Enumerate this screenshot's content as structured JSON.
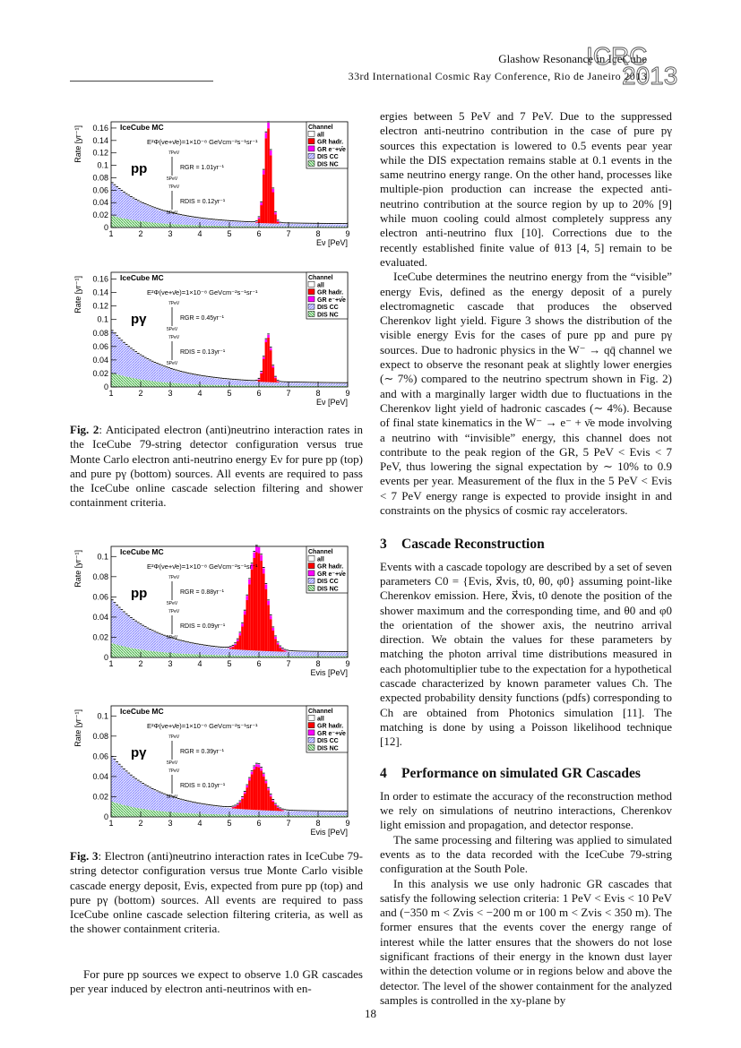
{
  "header": {
    "title": "Glashow Resonance in IceCube",
    "conference": "33rd International Cosmic Ray Conference, Rio de Janeiro 2013",
    "logo_text_1": "ICRC",
    "logo_text_2": "2013"
  },
  "page_number": "18",
  "figure2": {
    "caption_label": "Fig. 2",
    "caption_text": ": Anticipated electron (anti)neutrino interaction rates in the IceCube 79-string detector configuration versus true Monte Carlo electron anti-neutrino energy Eν for pure pp (top) and pure pγ (bottom) sources. All events are required to pass the IceCube online cascade selection filtering and shower containment criteria."
  },
  "figure3": {
    "caption_label": "Fig. 3",
    "caption_text": ": Electron (anti)neutrino interaction rates in IceCube 79-string detector configuration versus true Monte Carlo visible cascade energy deposit, Evis, expected from pure pp (top) and pure pγ (bottom) sources. All events are required to pass IceCube online cascade selection filtering criteria, as well as the shower containment criteria."
  },
  "left_text": {
    "p1": "For pure pp sources we expect to observe 1.0 GR cascades per year induced by electron anti-neutrinos with en-"
  },
  "right_text": {
    "p1": "ergies between 5 PeV and 7 PeV. Due to the suppressed electron anti-neutrino contribution in the case of pure pγ sources this expectation is lowered to 0.5 events pear year while the DIS expectation remains stable at 0.1 events in the same neutrino energy range. On the other hand, processes like multiple-pion production can increase the expected anti-neutrino contribution at the source region by up to 20% [9] while muon cooling could almost completely suppress any electron anti-neutrino flux [10]. Corrections due to the recently established finite value of θ13 [4, 5] remain to be evaluated.",
    "p2": "IceCube determines the neutrino energy from the “visible” energy Evis, defined as the energy deposit of a purely electromagnetic cascade that produces the observed Cherenkov light yield. Figure 3 shows the distribution of the visible energy Evis for the cases of pure pp and pure pγ sources. Due to hadronic physics in the W⁻ → qq̄ channel we expect to observe the resonant peak at slightly lower energies (∼ 7%) compared to the neutrino spectrum shown in Fig. 2) and with a marginally larger width due to fluctuations in the Cherenkov light yield of hadronic cascades (∼ 4%). Because of final state kinematics in the W⁻ → e⁻ + ν̄e mode involving a neutrino with “invisible” energy, this channel does not contribute to the peak region of the GR, 5 PeV < Evis < 7 PeV, thus lowering the signal expectation by ∼ 10% to 0.9 events per year. Measurement of the flux in the 5 PeV < Evis < 7 PeV energy range is expected to provide insight in and constraints on the physics of cosmic ray accelerators.",
    "sec3_num": "3",
    "sec3_title": "Cascade Reconstruction",
    "p3": "Events with a cascade topology are described by a set of seven parameters C0 = {Evis, x⃗vis, t0, θ0, φ0} assuming point-like Cherenkov emission. Here, x⃗vis, t0 denote the position of the shower maximum and the corresponding time, and θ0 and φ0 the orientation of the shower axis, the neutrino arrival direction. We obtain the values for these parameters by matching the photon arrival time distributions measured in each photomultiplier tube to the expectation for a hypothetical cascade characterized by known parameter values Ch. The expected probability density functions (pdfs) corresponding to Ch are obtained from Photonics simulation [11]. The matching is done by using a Poisson likelihood technique [12].",
    "sec4_num": "4",
    "sec4_title": "Performance on simulated GR Cascades",
    "p4": "In order to estimate the accuracy of the reconstruction method we rely on simulations of neutrino interactions, Cherenkov light emission and propagation, and detector response.",
    "p5": "The same processing and filtering was applied to simulated events as to the data recorded with the IceCube 79-string configuration at the South Pole.",
    "p6": "In this analysis we use only hadronic GR cascades that satisfy the following selection criteria: 1 PeV < Evis < 10 PeV and (−350 m < Zvis < −200 m or 100 m < Zvis < 350 m). The former ensures that the events cover the energy range of interest while the latter ensures that the showers do not lose significant fractions of their energy in the known dust layer within the detection volume or in regions below and above the detector. The level of the shower containment for the analyzed samples is controlled in the xy-plane by"
  },
  "colors": {
    "gr_hadr": "#ff0000",
    "gr_e": "#ff00ff",
    "dis_cc": "#7f7fff",
    "dis_nc": "#33aa33",
    "all": "#000000"
  },
  "chart_data": [
    {
      "type": "bar",
      "panel": "Fig. 2 top",
      "title": "IceCube MC",
      "source_label": "pp",
      "flux_label": "E²Φ(νe+ν̄e)=1×10⁻⁸ GeVcm⁻²s⁻¹sr⁻¹",
      "rate_gr_label": "RGR = 1.01yr⁻¹",
      "rate_dis_label": "RDIS = 0.12yr⁻¹",
      "integral_upper": "7PeV",
      "integral_lower": "5PeV",
      "xlabel": "Eν [PeV]",
      "ylabel": "Rate [yr⁻¹]",
      "xlim": [
        1,
        9
      ],
      "ylim": [
        0,
        0.17
      ],
      "yticks": [
        "0",
        "0.02",
        "0.04",
        "0.06",
        "0.08",
        "0.1",
        "0.12",
        "0.14",
        "0.16"
      ],
      "ytick_values": [
        0,
        0.02,
        0.04,
        0.06,
        0.08,
        0.1,
        0.12,
        0.14,
        0.16
      ],
      "xticks": [
        "1",
        "2",
        "3",
        "4",
        "5",
        "6",
        "7",
        "8",
        "9"
      ],
      "legend": [
        "Channel",
        "all",
        "GR hadr.",
        "GR e⁻+ν̄e",
        "DIS CC",
        "DIS NC"
      ],
      "legend_position": "top-right",
      "gr": {
        "peak": 6.3,
        "height": 0.155,
        "width": 0.12
      },
      "dis_cc_start": 0.05,
      "dis_nc_start": 0.018
    },
    {
      "type": "bar",
      "panel": "Fig. 2 bottom",
      "title": "IceCube MC",
      "source_label": "pγ",
      "flux_label": "E²Φ(νe+ν̄e)=1×10⁻⁸ GeVcm⁻²s⁻¹sr⁻¹",
      "rate_gr_label": "RGR = 0.45yr⁻¹",
      "rate_dis_label": "RDIS = 0.13yr⁻¹",
      "integral_upper": "7PeV",
      "integral_lower": "5PeV",
      "xlabel": "Eν [PeV]",
      "ylabel": "Rate [yr⁻¹]",
      "xlim": [
        1,
        9
      ],
      "ylim": [
        0,
        0.17
      ],
      "yticks": [
        "0",
        "0.02",
        "0.04",
        "0.06",
        "0.08",
        "0.1",
        "0.12",
        "0.14",
        "0.16"
      ],
      "ytick_values": [
        0,
        0.02,
        0.04,
        0.06,
        0.08,
        0.1,
        0.12,
        0.14,
        0.16
      ],
      "xticks": [
        "1",
        "2",
        "3",
        "4",
        "5",
        "6",
        "7",
        "8",
        "9"
      ],
      "legend": [
        "Channel",
        "all",
        "GR hadr.",
        "GR e⁻+ν̄e",
        "DIS CC",
        "DIS NC"
      ],
      "legend_position": "top-right",
      "gr": {
        "peak": 6.3,
        "height": 0.067,
        "width": 0.12
      },
      "dis_cc_start": 0.06,
      "dis_nc_start": 0.02
    },
    {
      "type": "bar",
      "panel": "Fig. 3 top",
      "title": "IceCube MC",
      "source_label": "pp",
      "flux_label": "E²Φ(νe+ν̄e)=1×10⁻⁸ GeVcm⁻²s⁻¹sr⁻¹",
      "rate_gr_label": "RGR = 0.88yr⁻¹",
      "rate_dis_label": "RDIS = 0.09yr⁻¹",
      "integral_upper": "7PeV",
      "integral_lower": "5PeV",
      "xlabel": "Evis [PeV]",
      "ylabel": "Rate [yr⁻¹]",
      "xlim": [
        1,
        9
      ],
      "ylim": [
        0,
        0.11
      ],
      "yticks": [
        "0",
        "0.02",
        "0.04",
        "0.06",
        "0.08",
        "0.1"
      ],
      "ytick_values": [
        0,
        0.02,
        0.04,
        0.06,
        0.08,
        0.1
      ],
      "xticks": [
        "1",
        "2",
        "3",
        "4",
        "5",
        "6",
        "7",
        "8",
        "9"
      ],
      "legend": [
        "Channel",
        "all",
        "GR hadr.",
        "GR e⁻+ν̄e",
        "DIS CC",
        "DIS NC"
      ],
      "legend_position": "top-right",
      "gr": {
        "peak": 5.95,
        "height": 0.098,
        "width": 0.3
      },
      "dis_cc_start": 0.04,
      "dis_nc_start": 0.013
    },
    {
      "type": "bar",
      "panel": "Fig. 3 bottom",
      "title": "IceCube MC",
      "source_label": "pγ",
      "flux_label": "E²Φ(νe+ν̄e)=1×10⁻⁸ GeVcm⁻²s⁻¹sr⁻¹",
      "rate_gr_label": "RGR = 0.39yr⁻¹",
      "rate_dis_label": "RDIS = 0.10yr⁻¹",
      "integral_upper": "7PeV",
      "integral_lower": "5PeV",
      "xlabel": "Evis [PeV]",
      "ylabel": "Rate [yr⁻¹]",
      "xlim": [
        1,
        9
      ],
      "ylim": [
        0,
        0.11
      ],
      "yticks": [
        "0",
        "0.02",
        "0.04",
        "0.06",
        "0.08",
        "0.1"
      ],
      "ytick_values": [
        0,
        0.02,
        0.04,
        0.06,
        0.08,
        0.1
      ],
      "xticks": [
        "1",
        "2",
        "3",
        "4",
        "5",
        "6",
        "7",
        "8",
        "9"
      ],
      "legend": [
        "Channel",
        "all",
        "GR hadr.",
        "GR e⁻+ν̄e",
        "DIS CC",
        "DIS NC"
      ],
      "legend_position": "top-right",
      "gr": {
        "peak": 5.95,
        "height": 0.043,
        "width": 0.3
      },
      "dis_cc_start": 0.042,
      "dis_nc_start": 0.014
    }
  ]
}
